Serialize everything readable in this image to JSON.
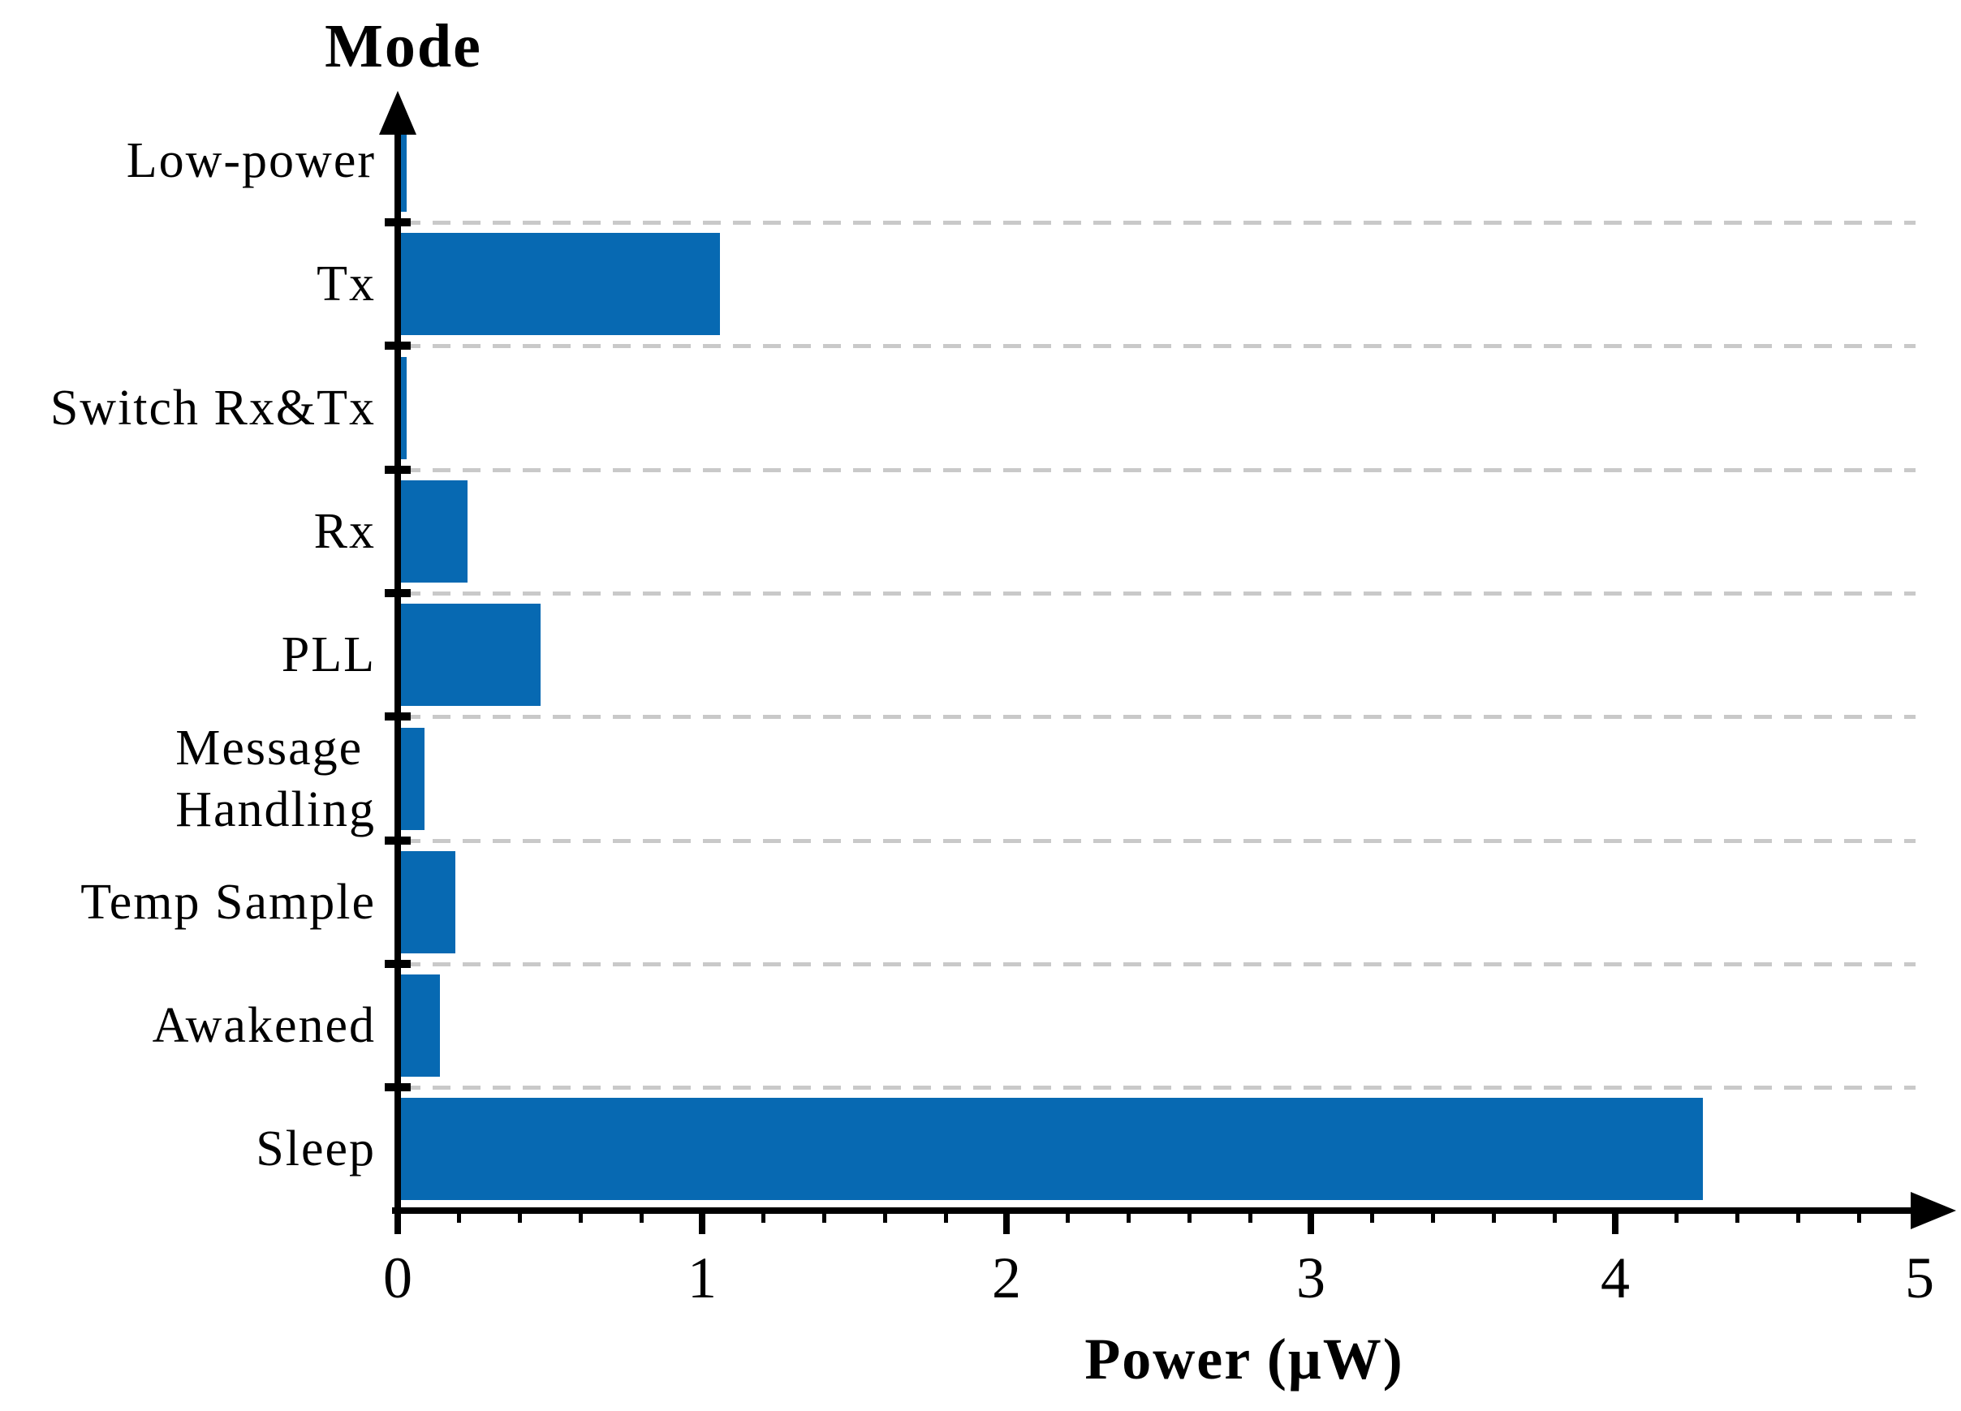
{
  "chart_data": {
    "type": "bar",
    "orientation": "horizontal",
    "title": "Mode",
    "xlabel": "Power (μW)",
    "categories": [
      "Low-power",
      "Tx",
      "Switch Rx&Tx",
      "Rx",
      "PLL",
      "Message Handling",
      "Temp Sample",
      "Awakened",
      "Sleep"
    ],
    "category_label_lines": [
      [
        "Low-power"
      ],
      [
        "Tx"
      ],
      [
        "Switch Rx&Tx"
      ],
      [
        "Rx"
      ],
      [
        "PLL"
      ],
      [
        "Message",
        "Handling"
      ],
      [
        "Temp Sample"
      ],
      [
        "Awakened"
      ],
      [
        "Sleep"
      ]
    ],
    "values": [
      0.02,
      1.05,
      0.02,
      0.22,
      0.46,
      0.08,
      0.18,
      0.13,
      4.28
    ],
    "unit": "μW",
    "xlim": [
      0,
      5
    ],
    "x_tick_labels": [
      "0",
      "1",
      "2",
      "3",
      "4",
      "5"
    ],
    "minor_tick_interval": 0.2,
    "grid": "dashed horizontal lines between category rows",
    "legend": "none",
    "bar_color": "#0769b2",
    "grid_color": "#c9c9c9",
    "axis_color": "#000000",
    "text_color": "#000000",
    "background_color": "#ffffff"
  }
}
